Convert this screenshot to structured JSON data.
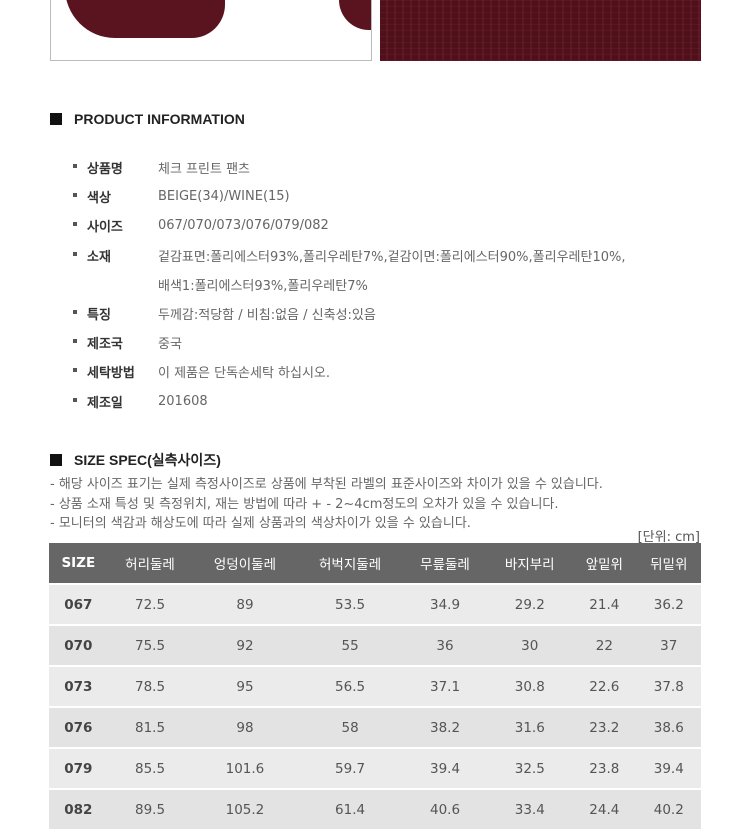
{
  "product_info": {
    "title": "PRODUCT INFORMATION",
    "items": [
      {
        "label": "상품명",
        "value": "체크 프린트 팬츠"
      },
      {
        "label": "색상",
        "value": "BEIGE(34)/WINE(15)"
      },
      {
        "label": "사이즈",
        "value": "067/070/073/076/079/082"
      },
      {
        "label": "소재",
        "value": "겉감표면:폴리에스터93%,폴리우레탄7%,겉감이면:폴리에스터90%,폴리우레탄10%,",
        "value2": "배색1:폴리에스터93%,폴리우레탄7%"
      },
      {
        "label": "특징",
        "value": "두께감:적당함 / 비침:없음 / 신축성:있음"
      },
      {
        "label": "제조국",
        "value": "중국"
      },
      {
        "label": "세탁방법",
        "value": "이 제품은 단독손세탁 하십시오."
      },
      {
        "label": "제조일",
        "value": "201608"
      }
    ]
  },
  "size_spec": {
    "title": "SIZE SPEC(실측사이즈)",
    "notes": [
      "- 해당 사이즈 표기는 실제 측정사이즈로 상품에 부착된 라벨의 표준사이즈와 차이가 있을 수 있습니다.",
      "- 상품 소재 특성 및 측정위치, 재는 방법에 따라 + - 2~4cm정도의 오차가 있을 수 있습니다.",
      "- 모니터의 색감과 해상도에 따라 실제 상품과의 색상차이가 있을 수 있습니다."
    ],
    "unit": "[단위: cm]",
    "headers": [
      "SIZE",
      "허리둘레",
      "엉덩이둘레",
      "허벅지둘레",
      "무릎둘레",
      "바지부리",
      "앞밑위",
      "뒤밑위"
    ],
    "rows": [
      [
        "067",
        "72.5",
        "89",
        "53.5",
        "34.9",
        "29.2",
        "21.4",
        "36.2"
      ],
      [
        "070",
        "75.5",
        "92",
        "55",
        "36",
        "30",
        "22",
        "37"
      ],
      [
        "073",
        "78.5",
        "95",
        "56.5",
        "37.1",
        "30.8",
        "22.6",
        "37.8"
      ],
      [
        "076",
        "81.5",
        "98",
        "58",
        "38.2",
        "31.6",
        "23.2",
        "38.6"
      ],
      [
        "079",
        "85.5",
        "101.6",
        "59.7",
        "39.4",
        "32.5",
        "23.8",
        "39.4"
      ],
      [
        "082",
        "89.5",
        "105.2",
        "61.4",
        "40.6",
        "33.4",
        "24.4",
        "40.2"
      ]
    ]
  },
  "colors": {
    "header_bg": "#666666",
    "fabric": "#5a1420"
  }
}
